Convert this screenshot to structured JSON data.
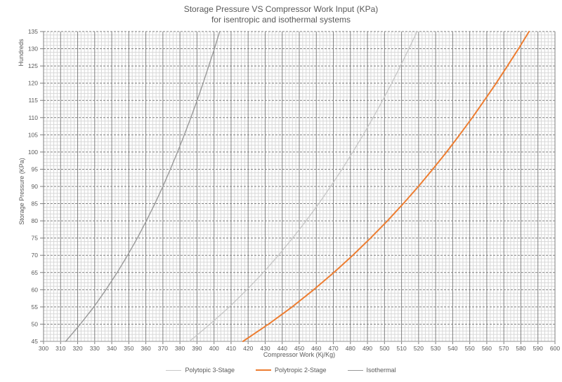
{
  "title": {
    "line1": "Storage Pressure VS Compressor Work Input (KPa)",
    "line2": "for isentropic and isothermal systems"
  },
  "chart_data": {
    "type": "line",
    "title": "Storage Pressure VS Compressor Work Input (KPa) for isentropic and isothermal systems",
    "xlabel": "Compressor Work (Kj/Kg)",
    "ylabel": "Storage Pressure (KPa)",
    "y_display_units": "Hundreds",
    "grid": "major and minor gridlines on",
    "legend_position": "bottom",
    "x_axis": {
      "min": 300,
      "max": 600,
      "major_step": 10,
      "minor_step": 2
    },
    "y_axis": {
      "min": 45,
      "max": 135,
      "major_step": 5,
      "minor_step": 1
    },
    "pressures_hundreds_kpa": [
      45,
      50,
      55,
      60,
      65,
      70,
      75,
      80,
      85,
      90,
      95,
      100,
      105,
      110,
      115,
      120,
      125,
      130,
      135
    ],
    "series": [
      {
        "name": "Polytopic 3-Stage",
        "color": "#c8c8c8",
        "width": 1.4,
        "work_values": [
          385.6,
          397.7,
          409.0,
          419.3,
          428.9,
          437.8,
          446.1,
          454.0,
          461.4,
          468.4,
          475.1,
          481.4,
          487.5,
          493.3,
          498.9,
          504.2,
          509.4,
          514.3,
          519.1
        ]
      },
      {
        "name": "Polytropic 2-Stage",
        "color": "#ED7D31",
        "width": 2,
        "work_values": [
          417.0,
          432.0,
          445.8,
          458.5,
          470.3,
          481.4,
          491.8,
          501.7,
          511.0,
          519.9,
          528.3,
          536.4,
          544.1,
          551.5,
          558.6,
          565.5,
          572.1,
          578.6,
          584.8
        ]
      },
      {
        "name": "Isothermal",
        "color": "#999999",
        "width": 1.4,
        "work_values": [
          313.0,
          321.6,
          329.5,
          336.6,
          343.2,
          349.3,
          355.0,
          360.3,
          365.3,
          370.0,
          374.4,
          378.6,
          382.6,
          386.4,
          390.1,
          393.6,
          396.9,
          400.2,
          403.3
        ]
      }
    ],
    "colors": {
      "major_grid": "#7f7f7f",
      "minor_grid": "#d8d8d8",
      "axis_line": "#a6a6a6",
      "tick_text": "#595959"
    }
  }
}
